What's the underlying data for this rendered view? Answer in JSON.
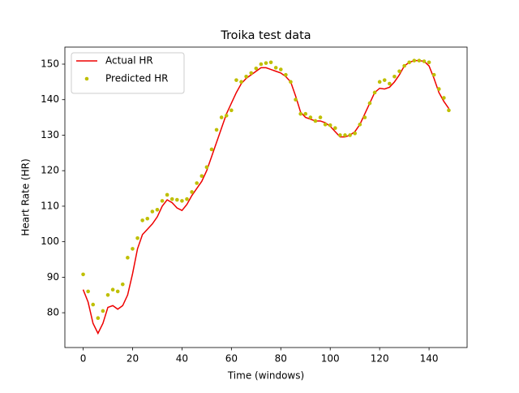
{
  "chart_data": {
    "type": "line",
    "title": "Troika test data",
    "xlabel": "Time (windows)",
    "ylabel": "Heart Rate (HR)",
    "x": [
      0,
      2,
      4,
      6,
      8,
      10,
      12,
      14,
      16,
      18,
      20,
      22,
      24,
      26,
      28,
      30,
      32,
      34,
      36,
      38,
      40,
      42,
      44,
      46,
      48,
      50,
      52,
      54,
      56,
      58,
      60,
      62,
      64,
      66,
      68,
      70,
      72,
      74,
      76,
      78,
      80,
      82,
      84,
      86,
      88,
      90,
      92,
      94,
      96,
      98,
      100,
      102,
      104,
      106,
      108,
      110,
      112,
      114,
      116,
      118,
      120,
      122,
      124,
      126,
      128,
      130,
      132,
      134,
      136,
      138,
      140,
      142,
      144,
      146,
      148
    ],
    "series": [
      {
        "name": "Actual HR",
        "color": "#ee0000",
        "style": "line",
        "values": [
          86.5,
          83,
          77,
          74.2,
          77,
          81.5,
          82,
          81,
          82,
          85,
          91,
          98,
          102,
          103.5,
          105,
          107,
          110,
          111.8,
          111,
          109.5,
          108.8,
          110.5,
          113,
          115,
          117,
          120,
          124,
          128,
          132,
          136,
          139,
          142,
          144.5,
          146,
          147,
          148,
          149,
          149,
          148.5,
          148,
          147.5,
          146.5,
          145,
          141,
          136.5,
          135,
          134.5,
          134,
          134,
          133.5,
          132.5,
          131,
          129.5,
          129.5,
          130,
          131,
          133,
          136,
          139,
          142,
          143.2,
          143,
          143.5,
          145,
          147,
          149.5,
          150.5,
          151,
          151,
          150.8,
          149.5,
          146,
          142,
          139.5,
          137.5
        ]
      },
      {
        "name": "Predicted HR",
        "color": "#bfbf00",
        "style": "points",
        "values": [
          90.8,
          86,
          82.3,
          78.5,
          80.5,
          85,
          86.5,
          86,
          88,
          95.5,
          98,
          101,
          106,
          106.5,
          108.5,
          109,
          111.5,
          113.2,
          112,
          111.8,
          111.5,
          112,
          114,
          116.5,
          118.5,
          121,
          126,
          131.5,
          135,
          135.5,
          137,
          145.5,
          145,
          146.5,
          147.5,
          148.8,
          150,
          150.3,
          150.5,
          149,
          148.5,
          147,
          145,
          140,
          136,
          136,
          135,
          134,
          135,
          133,
          132.8,
          132,
          130,
          130,
          130,
          130.5,
          133,
          135,
          139,
          142,
          145,
          145.5,
          144.5,
          146.5,
          148,
          149.5,
          150.5,
          151,
          151,
          150.8,
          150.5,
          147,
          143,
          140.5,
          137
        ]
      }
    ],
    "xlim": [
      -7.4,
      155.4
    ],
    "ylim": [
      70.2,
      154.8
    ],
    "xticks": [
      0,
      20,
      40,
      60,
      80,
      100,
      120,
      140
    ],
    "yticks": [
      80,
      90,
      100,
      110,
      120,
      130,
      140,
      150
    ],
    "legend": "upper left"
  }
}
